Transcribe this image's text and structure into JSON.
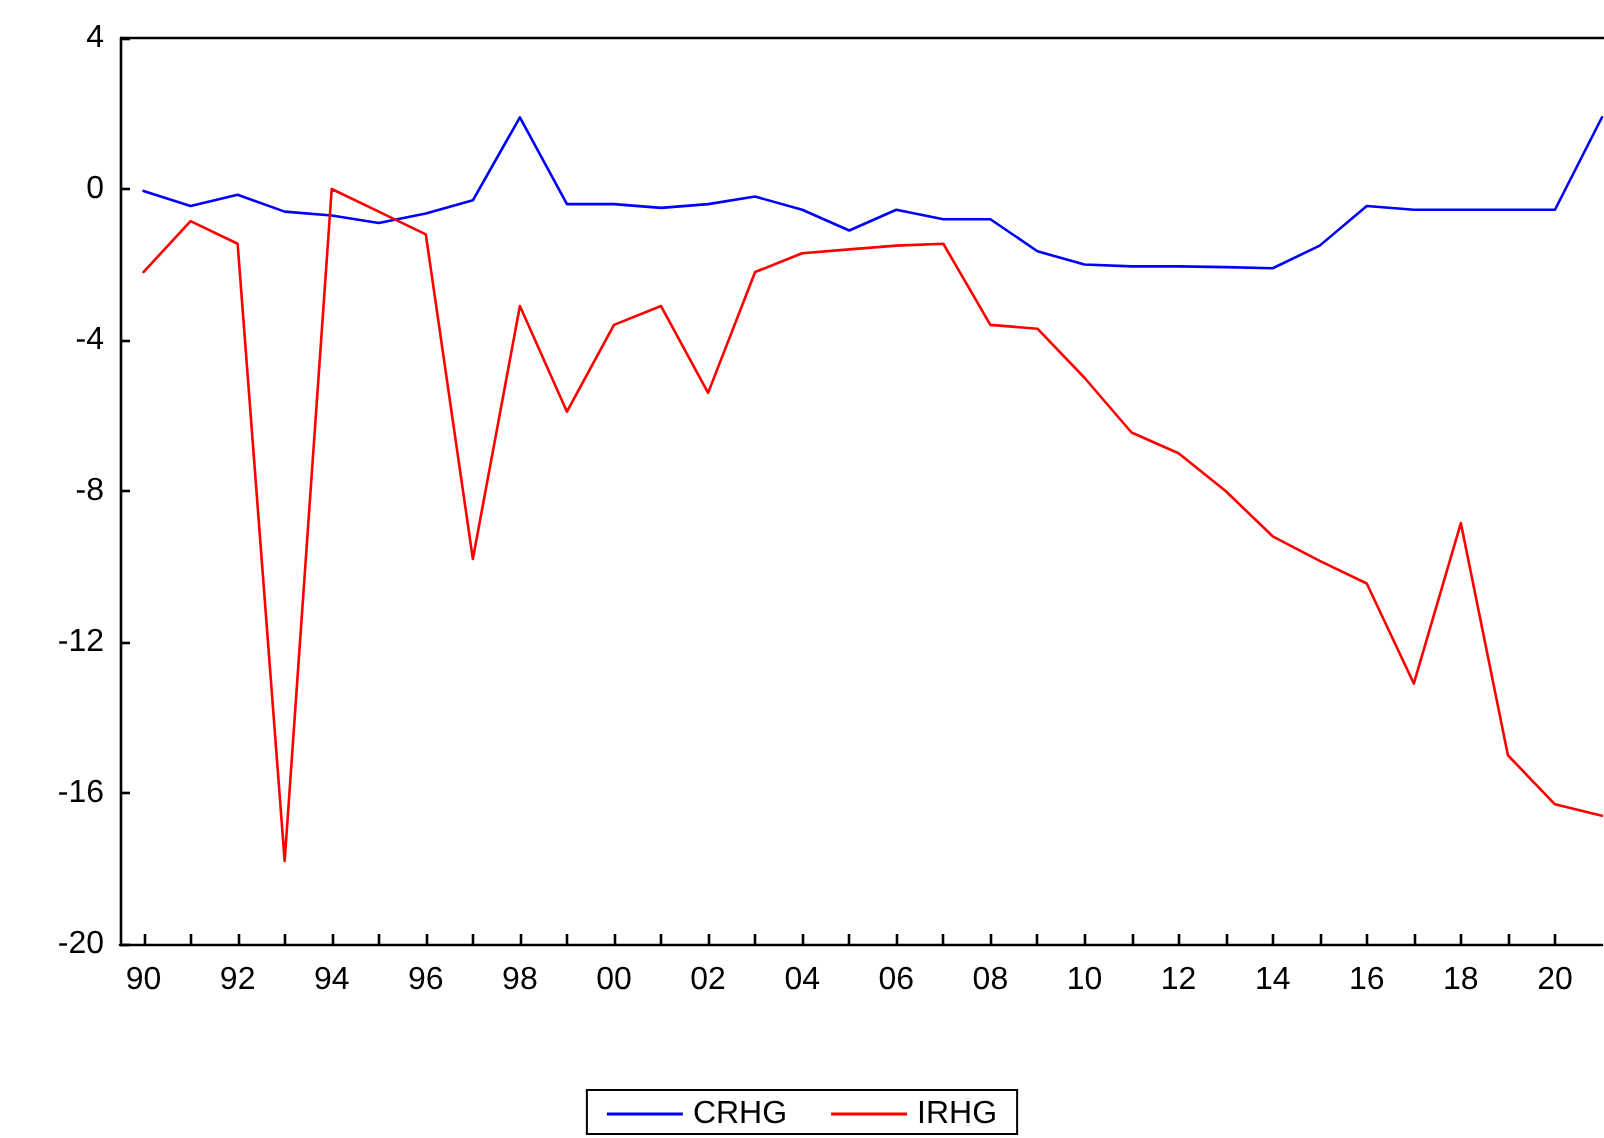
{
  "chart_data": {
    "type": "line",
    "x": [
      1990,
      1991,
      1992,
      1993,
      1994,
      1995,
      1996,
      1997,
      1998,
      1999,
      2000,
      2001,
      2002,
      2003,
      2004,
      2005,
      2006,
      2007,
      2008,
      2009,
      2010,
      2011,
      2012,
      2013,
      2014,
      2015,
      2016,
      2017,
      2018,
      2019,
      2020,
      2021
    ],
    "series": [
      {
        "name": "CRHG",
        "color": "#0000ff",
        "values": [
          -0.05,
          -0.45,
          -0.15,
          -0.6,
          -0.7,
          -0.9,
          -0.65,
          -0.3,
          1.9,
          -0.4,
          -0.4,
          -0.5,
          -0.4,
          -0.2,
          -0.55,
          -1.1,
          -0.55,
          -0.8,
          -0.8,
          -1.65,
          -2.0,
          -2.05,
          -2.05,
          -2.07,
          -2.1,
          -1.5,
          -0.45,
          -0.55,
          -0.55,
          -0.55,
          -0.55,
          1.9
        ]
      },
      {
        "name": "IRHG",
        "color": "#ff0000",
        "values": [
          -2.2,
          -0.85,
          -1.45,
          -17.8,
          0.0,
          -0.6,
          -1.2,
          -9.8,
          -3.1,
          -5.9,
          -3.6,
          -3.1,
          -5.4,
          -2.2,
          -1.7,
          -1.6,
          -1.5,
          -1.45,
          -3.6,
          -3.7,
          -5.0,
          -6.45,
          -7.0,
          -8.0,
          -9.2,
          -9.85,
          -10.45,
          -13.1,
          -8.85,
          -15.0,
          -16.3,
          -16.6
        ]
      }
    ],
    "xlim": [
      1989.5,
      2021
    ],
    "xticks": [
      {
        "value": 1990,
        "label": "90"
      },
      {
        "value": 1991,
        "label": null
      },
      {
        "value": 1992,
        "label": "92"
      },
      {
        "value": 1993,
        "label": null
      },
      {
        "value": 1994,
        "label": "94"
      },
      {
        "value": 1995,
        "label": null
      },
      {
        "value": 1996,
        "label": "96"
      },
      {
        "value": 1997,
        "label": null
      },
      {
        "value": 1998,
        "label": "98"
      },
      {
        "value": 1999,
        "label": null
      },
      {
        "value": 2000,
        "label": "00"
      },
      {
        "value": 2001,
        "label": null
      },
      {
        "value": 2002,
        "label": "02"
      },
      {
        "value": 2003,
        "label": null
      },
      {
        "value": 2004,
        "label": "04"
      },
      {
        "value": 2005,
        "label": null
      },
      {
        "value": 2006,
        "label": "06"
      },
      {
        "value": 2007,
        "label": null
      },
      {
        "value": 2008,
        "label": "08"
      },
      {
        "value": 2009,
        "label": null
      },
      {
        "value": 2010,
        "label": "10"
      },
      {
        "value": 2011,
        "label": null
      },
      {
        "value": 2012,
        "label": "12"
      },
      {
        "value": 2013,
        "label": null
      },
      {
        "value": 2014,
        "label": "14"
      },
      {
        "value": 2015,
        "label": null
      },
      {
        "value": 2016,
        "label": "16"
      },
      {
        "value": 2017,
        "label": null
      },
      {
        "value": 2018,
        "label": "18"
      },
      {
        "value": 2019,
        "label": null
      },
      {
        "value": 2020,
        "label": "20"
      }
    ],
    "ylim": [
      -20,
      4
    ],
    "yticks": [
      -20,
      -16,
      -12,
      -8,
      -4,
      0,
      4
    ],
    "grid": false,
    "legend": "bottom",
    "marker": "none",
    "line_style": "solid"
  }
}
